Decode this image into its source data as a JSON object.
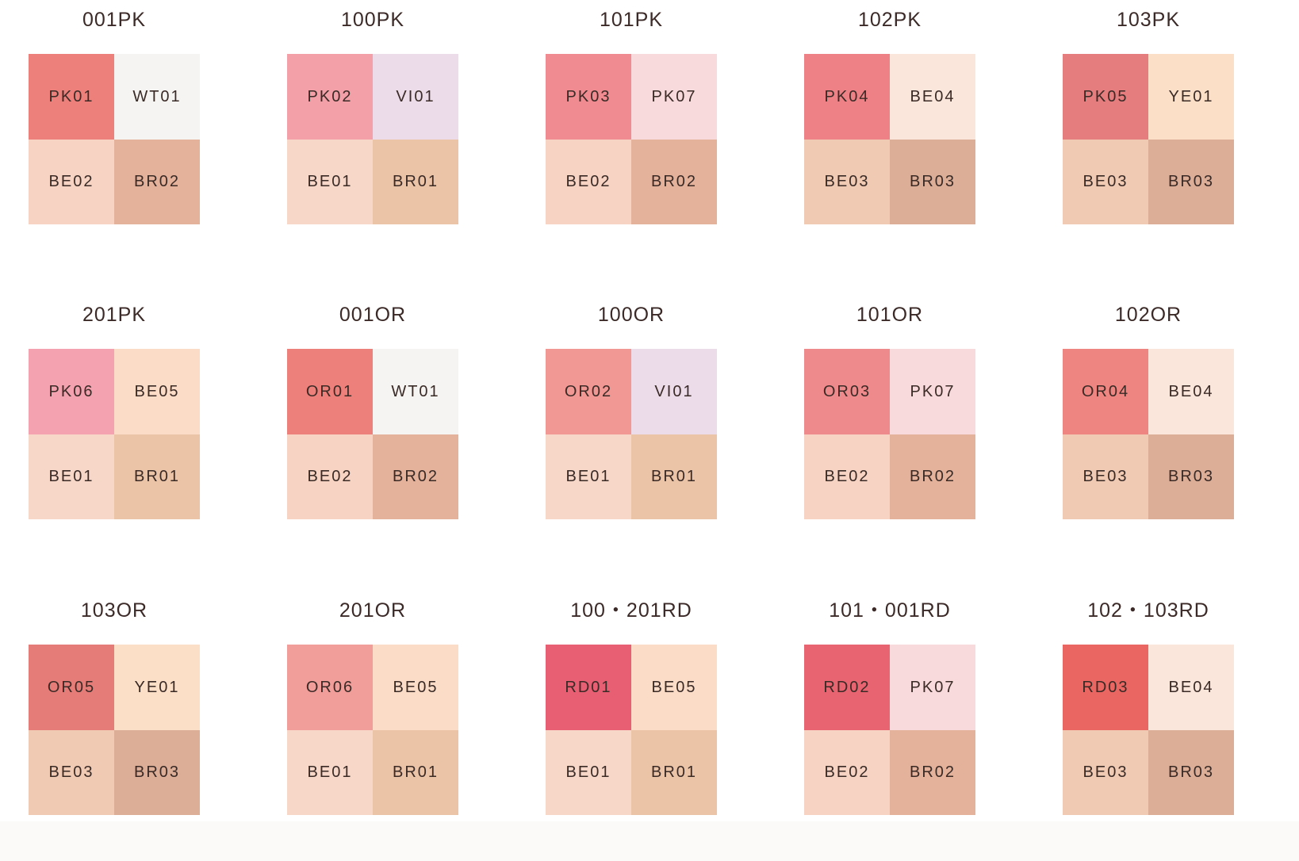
{
  "colors": {
    "PK01": "#ee807c",
    "WT01": "#f6f4f3",
    "BE02": "#f6d3c2",
    "BR02": "#e4b19b",
    "PK02": "#f3a0a8",
    "VI01": "#ecdcea",
    "BE01": "#f6d7c8",
    "BR01": "#ebc4a8",
    "PK03": "#f08b91",
    "PK07": "#f9dadc",
    "PK04": "#ee8186",
    "BE04": "#fae6da",
    "BE03": "#f0cab3",
    "BR03": "#dcae97",
    "PK05": "#e57c7e",
    "YE01": "#fbdfc7",
    "PK06": "#f4a1b0",
    "BE05": "#fbdcc7",
    "OR01": "#ed807b",
    "OR02": "#f19794",
    "OR03": "#ef8a8c",
    "OR04": "#ee8580",
    "OR05": "#e57c78",
    "OR06": "#f19d99",
    "RD01": "#e85f73",
    "RD02": "#e86471",
    "RD03": "#ea6662"
  },
  "palettes": [
    {
      "title": "001PK",
      "cells": [
        "PK01",
        "WT01",
        "BE02",
        "BR02"
      ]
    },
    {
      "title": "100PK",
      "cells": [
        "PK02",
        "VI01",
        "BE01",
        "BR01"
      ]
    },
    {
      "title": "101PK",
      "cells": [
        "PK03",
        "PK07",
        "BE02",
        "BR02"
      ]
    },
    {
      "title": "102PK",
      "cells": [
        "PK04",
        "BE04",
        "BE03",
        "BR03"
      ]
    },
    {
      "title": "103PK",
      "cells": [
        "PK05",
        "YE01",
        "BE03",
        "BR03"
      ]
    },
    {
      "title": "201PK",
      "cells": [
        "PK06",
        "BE05",
        "BE01",
        "BR01"
      ]
    },
    {
      "title": "001OR",
      "cells": [
        "OR01",
        "WT01",
        "BE02",
        "BR02"
      ]
    },
    {
      "title": "100OR",
      "cells": [
        "OR02",
        "VI01",
        "BE01",
        "BR01"
      ]
    },
    {
      "title": "101OR",
      "cells": [
        "OR03",
        "PK07",
        "BE02",
        "BR02"
      ]
    },
    {
      "title": "102OR",
      "cells": [
        "OR04",
        "BE04",
        "BE03",
        "BR03"
      ]
    },
    {
      "title": "103OR",
      "cells": [
        "OR05",
        "YE01",
        "BE03",
        "BR03"
      ]
    },
    {
      "title": "201OR",
      "cells": [
        "OR06",
        "BE05",
        "BE01",
        "BR01"
      ]
    },
    {
      "title": "100・201RD",
      "cells": [
        "RD01",
        "BE05",
        "BE01",
        "BR01"
      ]
    },
    {
      "title": "101・001RD",
      "cells": [
        "RD02",
        "PK07",
        "BE02",
        "BR02"
      ]
    },
    {
      "title": "102・103RD",
      "cells": [
        "RD03",
        "BE04",
        "BE03",
        "BR03"
      ]
    }
  ]
}
